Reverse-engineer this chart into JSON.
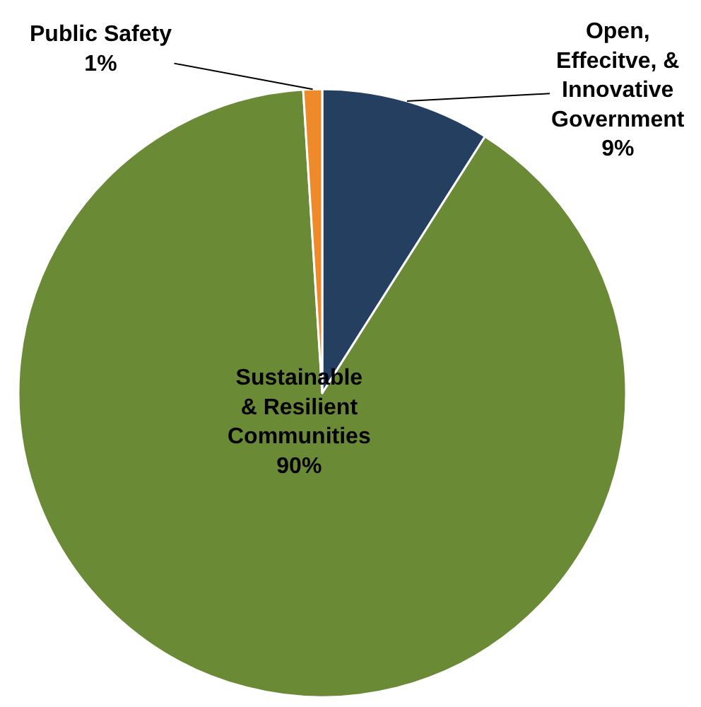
{
  "chart_data": {
    "type": "pie",
    "categories": [
      "Open, Effecitve, & Innovative Government",
      "Sustainable & Resilient Communities",
      "Public Safety"
    ],
    "values": [
      9,
      90,
      1
    ],
    "value_labels": [
      "9%",
      "90%",
      "1%"
    ],
    "colors": [
      "#243f60",
      "#6b8a36",
      "#ee8a2a"
    ],
    "legend": false
  }
}
